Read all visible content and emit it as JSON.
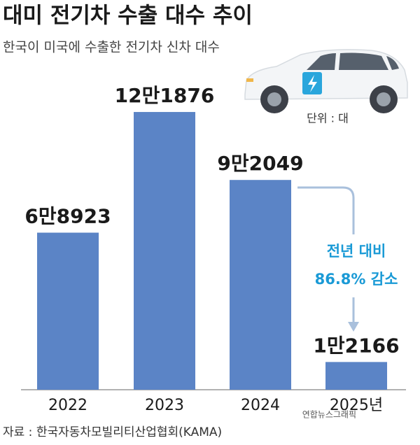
{
  "chart_data": {
    "type": "bar",
    "title": "대미 전기차 수출 대수 추이",
    "subtitle": "한국이 미국에 수출한 전기차 신차 대수",
    "unit": "단위 : 대",
    "categories": [
      "2022",
      "2023",
      "2024",
      "2025년"
    ],
    "values": [
      68923,
      121876,
      92049,
      12166
    ],
    "value_labels": [
      "6만8923",
      "12만1876",
      "9만2049",
      "1만2166"
    ],
    "color": "#5b84c6",
    "annotation": [
      "전년 대비",
      "86.8% 감소"
    ],
    "source": "자료 : 한국자동차모빌리티산업협회(KAMA)",
    "credit": "연합뉴스그래픽"
  }
}
